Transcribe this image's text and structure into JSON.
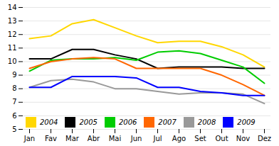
{
  "chart_data": {
    "type": "line",
    "categories": [
      "Jan",
      "Fav",
      "Mar",
      "Abr",
      "Mai",
      "Jun",
      "Jul",
      "Ago",
      "Set",
      "Out",
      "Nov",
      "Dez"
    ],
    "series": [
      {
        "name": "2004",
        "color": "#FFD700",
        "values": [
          11.7,
          11.9,
          12.8,
          13.1,
          12.5,
          11.9,
          11.4,
          11.5,
          11.5,
          11.1,
          10.5,
          9.6
        ]
      },
      {
        "name": "2005",
        "color": "#000000",
        "values": [
          10.2,
          10.2,
          10.9,
          10.9,
          10.5,
          10.2,
          9.5,
          9.6,
          9.6,
          9.6,
          9.5,
          9.5
        ]
      },
      {
        "name": "2006",
        "color": "#00CC00",
        "values": [
          9.3,
          10.1,
          10.2,
          10.2,
          10.3,
          10.1,
          10.7,
          10.8,
          10.6,
          10.1,
          9.6,
          8.4
        ]
      },
      {
        "name": "2007",
        "color": "#FF6600",
        "values": [
          9.5,
          10.0,
          10.2,
          10.3,
          10.2,
          9.5,
          9.5,
          9.5,
          9.5,
          9.0,
          8.3,
          7.5
        ]
      },
      {
        "name": "2008",
        "color": "#999999",
        "values": [
          8.1,
          8.6,
          8.7,
          8.5,
          8.0,
          8.0,
          7.8,
          7.6,
          7.7,
          7.7,
          7.6,
          6.9
        ]
      },
      {
        "name": "2009",
        "color": "#0000FF",
        "values": [
          8.1,
          8.1,
          8.9,
          8.9,
          8.9,
          8.8,
          8.1,
          8.1,
          7.8,
          7.7,
          7.5,
          7.5
        ]
      }
    ],
    "ylim": [
      5,
      14
    ],
    "yticks": [
      5,
      6,
      7,
      8,
      9,
      10,
      11,
      12,
      13,
      14
    ],
    "grid": true,
    "legend": "lower left"
  }
}
